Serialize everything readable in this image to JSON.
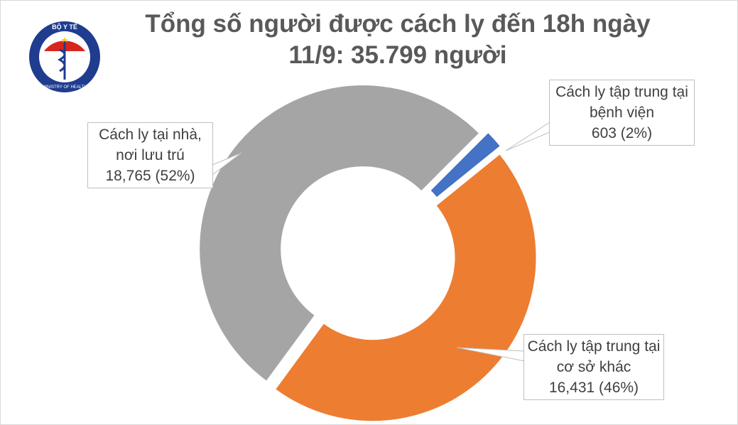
{
  "logo": {
    "top": "BỘ Y TẾ",
    "bottom": "MINISTRY OF HEALTH"
  },
  "chart_data": {
    "type": "donut",
    "title": [
      "Tổng số người được cách ly đến 18h ngày",
      "11/9: 35.799 người"
    ],
    "categories": [
      "Cách ly tập trung tại bệnh viện",
      "Cách ly tập trung tại cơ sở khác",
      "Cách ly tại nhà, nơi lưu trú"
    ],
    "values": [
      603,
      16431,
      18765
    ],
    "value_labels": [
      "603 (2%)",
      "16,431 (46%)",
      "18,765 (52%)"
    ],
    "colors": [
      "#4472c4",
      "#ed7d31",
      "#a5a5a5"
    ]
  }
}
